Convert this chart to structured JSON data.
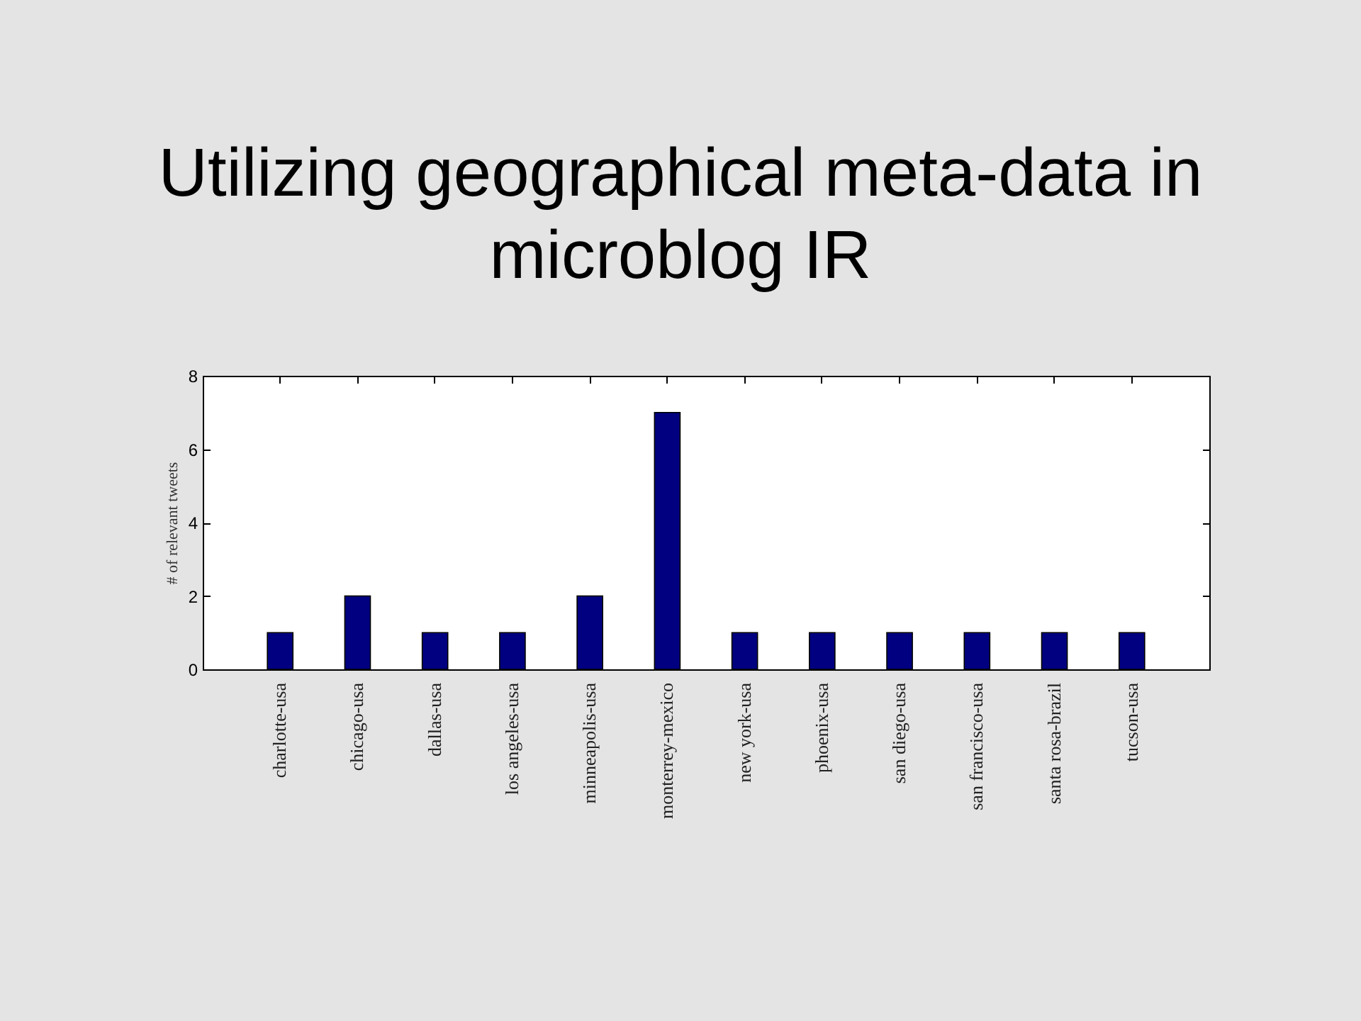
{
  "chart_data": {
    "type": "bar",
    "title": "Utilizing geographical meta-data in microblog IR",
    "ylabel": "# of relevant tweets",
    "categories": [
      "charlotte-usa",
      "chicago-usa",
      "dallas-usa",
      "los angeles-usa",
      "minneapolis-usa",
      "monterrey-mexico",
      "new york-usa",
      "phoenix-usa",
      "san diego-usa",
      "san francisco-usa",
      "santa rosa-brazil",
      "tucson-usa"
    ],
    "values": [
      1,
      2,
      1,
      1,
      2,
      7,
      1,
      1,
      1,
      1,
      1,
      1
    ],
    "color": "#000080",
    "ylim": [
      0,
      8
    ],
    "yticks": [
      0,
      2,
      4,
      6,
      8
    ],
    "grid": false
  }
}
